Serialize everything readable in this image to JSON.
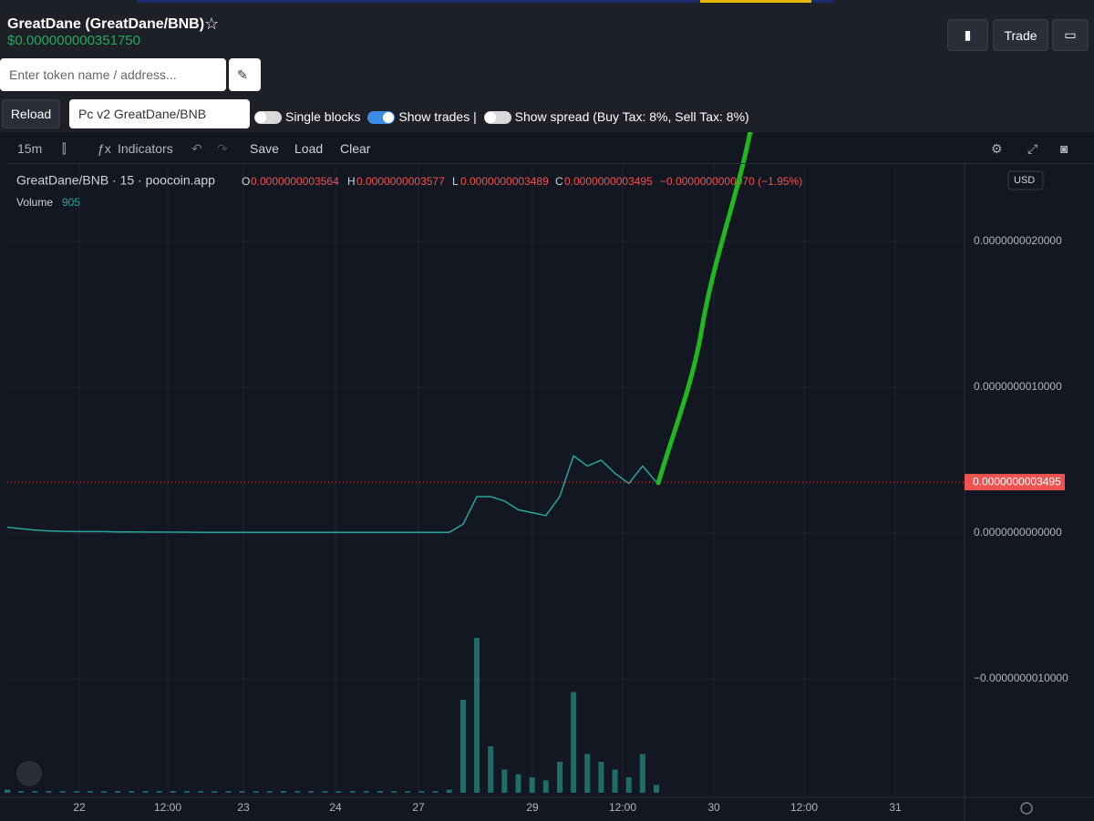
{
  "header": {
    "title": "GreatDane (GreatDane/BNB)",
    "price": "$0.000000000351750",
    "search_placeholder": "Enter token name / address...",
    "trade_button": "Trade"
  },
  "controls": {
    "reload": "Reload",
    "pair_select": "Pc v2 GreatDane/BNB",
    "single_blocks": "Single blocks",
    "single_blocks_on": false,
    "show_trades": "Show trades |",
    "show_trades_on": true,
    "show_spread": "Show spread (Buy Tax: 8%, Sell Tax: 8%)",
    "show_spread_on": false
  },
  "toolbar": {
    "interval": "15m",
    "indicators": "Indicators",
    "save": "Save",
    "load": "Load",
    "clear": "Clear"
  },
  "chart": {
    "type": "line",
    "legend": {
      "symbol": "GreatDane/BNB · 15 · poocoin.app",
      "o": "O",
      "open": "0.0000000003564",
      "h": "H",
      "high": "0.0000000003577",
      "l": "L",
      "low": "0.0000000003489",
      "c": "C",
      "close": "0.0000000003495",
      "change": "−0.0000000000070 (−1.95%)",
      "volume_label": "Volume",
      "volume": 905
    },
    "currency": "USD",
    "xticks": [
      "22",
      "12:00",
      "23",
      "24",
      "27",
      "29",
      "12:00",
      "30",
      "12:00",
      "31"
    ],
    "ylim": [
      -1.8125e-09,
      2.53125e-09
    ],
    "yticks": [
      {
        "value": 2e-09,
        "label": "0.0000000020000"
      },
      {
        "value": 1e-09,
        "label": "0.0000000010000"
      },
      {
        "value": 0,
        "label": "0.0000000000000"
      },
      {
        "value": -1e-09,
        "label": "−0.0000000010000"
      }
    ],
    "grid": true,
    "price_color": "#26a69a",
    "last_line_color": "#ef5350",
    "volume_color": "#26a69a",
    "price": [
      4e-11,
      3e-11,
      2e-11,
      1.5e-11,
      1.2e-11,
      1e-11,
      1e-11,
      1e-11,
      8e-12,
      8e-12,
      7e-12,
      7e-12,
      6e-12,
      6e-12,
      5e-12,
      5e-12,
      5e-12,
      5e-12,
      5e-12,
      5e-12,
      5e-12,
      5e-12,
      5e-12,
      5e-12,
      5e-12,
      5e-12,
      5e-12,
      5e-12,
      5e-12,
      5e-12,
      5e-12,
      5e-12,
      5e-12,
      6e-11,
      2.5e-10,
      2.5e-10,
      2.2e-10,
      1.6e-10,
      1.4e-10,
      1.2e-10,
      2.5e-10,
      5.3e-10,
      4.6e-10,
      5e-10,
      4.1e-10,
      3.4e-10,
      4.6e-10,
      3.495e-10
    ],
    "volume": [
      2,
      1,
      1,
      1,
      1,
      1,
      1,
      1,
      1,
      1,
      1,
      1,
      1,
      1,
      1,
      1,
      1,
      1,
      1,
      1,
      1,
      1,
      1,
      1,
      1,
      1,
      1,
      1,
      1,
      1,
      1,
      1,
      2,
      60,
      100,
      30,
      15,
      12,
      10,
      8,
      20,
      65,
      25,
      20,
      15,
      10,
      25,
      5
    ]
  }
}
